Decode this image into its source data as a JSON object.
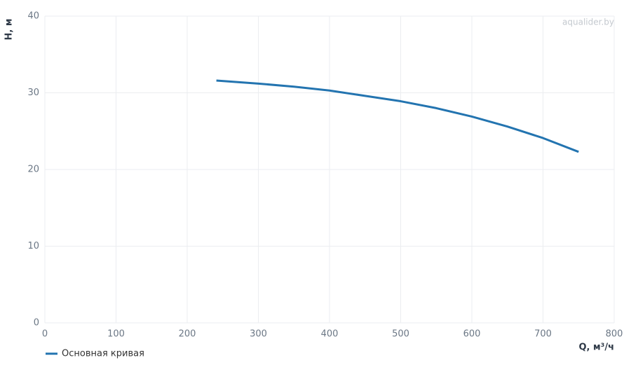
{
  "chart_data": {
    "type": "line",
    "x_label": "Q, м³/ч",
    "y_label": "H, м",
    "watermark": "aqualider.by",
    "x": [
      241,
      300,
      350,
      400,
      450,
      500,
      550,
      600,
      650,
      700,
      750
    ],
    "series": [
      {
        "name": "Основная кривая",
        "color": "#2374b0",
        "values": [
          31.6,
          31.2,
          30.8,
          30.3,
          29.6,
          28.9,
          28.0,
          26.9,
          25.6,
          24.1,
          22.3
        ]
      }
    ],
    "xlim": [
      0,
      800
    ],
    "xticks": [
      0,
      100,
      200,
      300,
      400,
      500,
      600,
      700,
      800
    ],
    "ylim": [
      0,
      40
    ],
    "yticks": [
      0,
      10,
      20,
      30,
      40
    ],
    "grid": true,
    "legend": "bottom-left"
  }
}
